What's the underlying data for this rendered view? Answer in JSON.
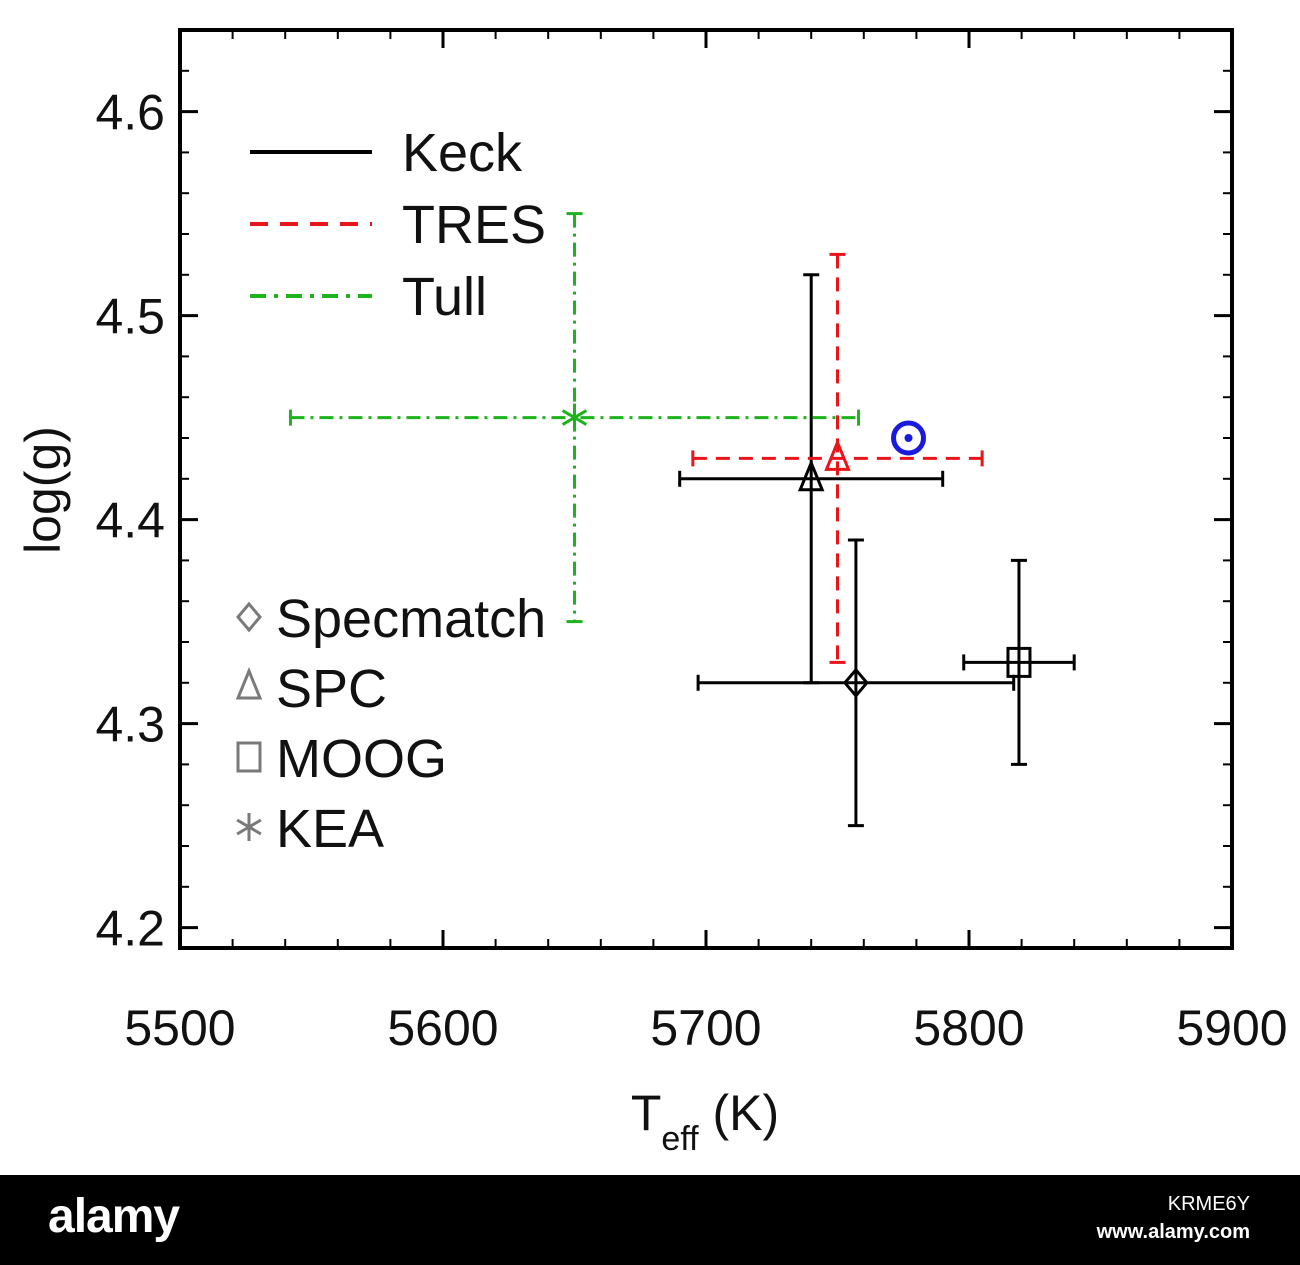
{
  "chart_data": {
    "type": "scatter",
    "xlabel_main": "T",
    "xlabel_sub": "eff",
    "xlabel_unit": " (K)",
    "ylabel": "log(g)",
    "xlim": [
      5500,
      5900
    ],
    "ylim": [
      4.19,
      4.64
    ],
    "xticks": [
      5500,
      5600,
      5700,
      5800,
      5900
    ],
    "yticks": [
      4.2,
      4.3,
      4.4,
      4.5,
      4.6
    ],
    "grid": false,
    "legend_lines": [
      {
        "label": "Keck",
        "style": "solid",
        "color": "#000000"
      },
      {
        "label": "TRES",
        "style": "dashed",
        "color": "#e8151b"
      },
      {
        "label": "Tull",
        "style": "dashdot",
        "color": "#1db31d"
      }
    ],
    "legend_symbols": [
      {
        "label": "Specmatch",
        "marker": "diamond"
      },
      {
        "label": "SPC",
        "marker": "triangle"
      },
      {
        "label": "MOOG",
        "marker": "square"
      },
      {
        "label": "KEA",
        "marker": "asterisk"
      }
    ],
    "points": [
      {
        "instrument": "Keck",
        "method": "SPC",
        "x": 5740,
        "y": 4.42,
        "xerr": 50,
        "yerr_low": 0.1,
        "yerr_high": 0.1
      },
      {
        "instrument": "Keck",
        "method": "Specmatch",
        "x": 5757,
        "y": 4.32,
        "xerr": 60,
        "yerr_low": 0.07,
        "yerr_high": 0.07
      },
      {
        "instrument": "Keck",
        "method": "MOOG",
        "x": 5819,
        "y": 4.33,
        "xerr": 21,
        "yerr_low": 0.05,
        "yerr_high": 0.05
      },
      {
        "instrument": "TRES",
        "method": "SPC",
        "x": 5750,
        "y": 4.43,
        "xerr": 55,
        "yerr_low": 0.1,
        "yerr_high": 0.1
      },
      {
        "instrument": "Tull",
        "method": "KEA",
        "x": 5650,
        "y": 4.45,
        "xerr": 108,
        "yerr_low": 0.1,
        "yerr_high": 0.1
      }
    ],
    "sun": {
      "x": 5777,
      "y": 4.44,
      "color": "#1a1adc"
    }
  },
  "colors": {
    "keck": "#000000",
    "tres": "#e8151b",
    "tull": "#1db31d",
    "sun": "#1a1adc",
    "legend_symbol": "#7a7a7a"
  },
  "footer": {
    "brand": "alamy",
    "image_id": "KRME6Y",
    "site": "www.alamy.com"
  }
}
